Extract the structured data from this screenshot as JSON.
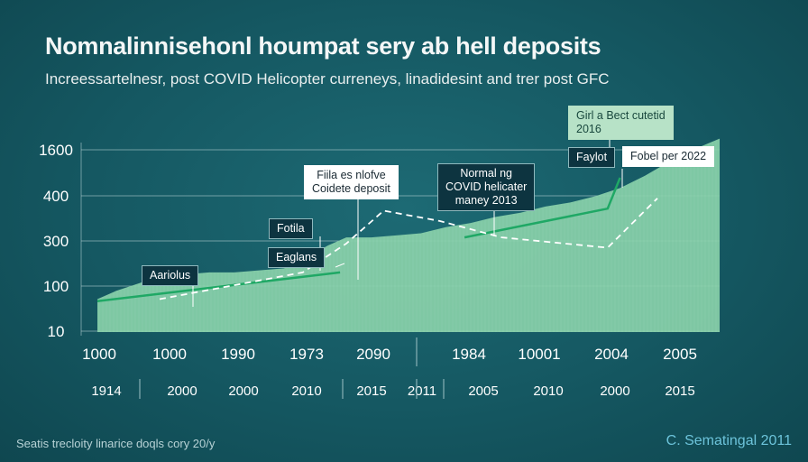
{
  "title": "Nomnalinnisehonl houmpat sery ab hell deposits",
  "subtitle": "Increessartelnesr, post COVID Helicopter curreneys, linadidesint and trer post GFC",
  "footer_left": "Seatis trecloity linarice doqls cory 20/y",
  "footer_right": "C. Sematingal 2011",
  "colors": {
    "background": "#155862",
    "area_fill": "#8cd3ad",
    "solid_line": "#1fa865",
    "dashed_line": "#ffffff",
    "gridline": "#bcd6d8"
  },
  "annotations": [
    {
      "id": "aariolus",
      "text": "Aariolus",
      "style": "dark"
    },
    {
      "id": "fotila",
      "text": "Fotila",
      "style": "dark"
    },
    {
      "id": "eaglans",
      "text": "Eaglans",
      "style": "dark"
    },
    {
      "id": "fiia",
      "text": "Fiila es nlofve\nCoidete deposit",
      "style": "light"
    },
    {
      "id": "normaling",
      "text": "Normal ng\nCOVID helicater\nmaney 2013",
      "style": "dark"
    },
    {
      "id": "girla",
      "text": "Girl a Bect cutetid\n2016",
      "style": "green"
    },
    {
      "id": "faylot",
      "text": "Faylot",
      "style": "dark"
    },
    {
      "id": "fobel",
      "text": "Fobel per 2022",
      "style": "light"
    }
  ],
  "chart_data": {
    "type": "area",
    "title": "Nomnalinnisehonl houmpat sery ab hell deposits",
    "subtitle": "Increessartelnesr, post COVID Helicopter curreneys, linadidesint and trer post GFC",
    "xlabel": "",
    "ylabel": "",
    "y_ticks": [
      "10",
      "100",
      "300",
      "400",
      "1600"
    ],
    "x_ticks_row1": [
      "1000",
      "1000",
      "1990",
      "1973",
      "2090",
      "1984",
      "10001",
      "2004",
      "2005"
    ],
    "x_ticks_row2": [
      "1914",
      "2000",
      "2000",
      "2010",
      "2015",
      "2011",
      "2005",
      "2010",
      "2000",
      "2015"
    ],
    "grid": true,
    "series": [
      {
        "style": "area",
        "x": [
          0,
          3,
          7,
          10,
          14,
          18,
          22,
          26,
          30,
          33,
          37,
          40,
          44,
          48,
          52,
          56,
          60,
          64,
          68,
          72,
          76,
          80,
          84,
          88,
          92,
          96,
          100
        ],
        "values": [
          1.6,
          2.0,
          2.4,
          2.7,
          2.8,
          2.9,
          2.9,
          3.0,
          3.1,
          3.5,
          4.2,
          4.6,
          4.6,
          4.7,
          4.8,
          5.1,
          5.3,
          5.6,
          5.8,
          6.1,
          6.3,
          6.6,
          7.0,
          7.6,
          8.3,
          8.9,
          9.4
        ]
      },
      {
        "style": "solid",
        "x": [
          0,
          39,
          39,
          42,
          59,
          82,
          84
        ],
        "values": [
          1.5,
          2.9,
          null,
          null,
          4.6,
          6.0,
          7.5
        ]
      },
      {
        "style": "dashed",
        "x": [
          10,
          33,
          40,
          46,
          55,
          65,
          82,
          90
        ],
        "values": [
          1.6,
          2.9,
          4.3,
          5.9,
          5.4,
          4.6,
          4.1,
          6.5
        ]
      }
    ]
  }
}
